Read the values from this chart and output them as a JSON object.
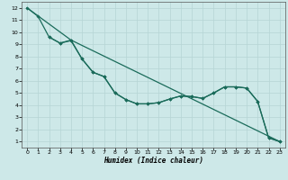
{
  "xlabel": "Humidex (Indice chaleur)",
  "background_color": "#cde8e8",
  "grid_color": "#b5d5d5",
  "line_color": "#1a6b5a",
  "xlim": [
    -0.5,
    23.5
  ],
  "ylim": [
    0.5,
    12.5
  ],
  "xticks": [
    0,
    1,
    2,
    3,
    4,
    5,
    6,
    7,
    8,
    9,
    10,
    11,
    12,
    13,
    14,
    15,
    16,
    17,
    18,
    19,
    20,
    21,
    22,
    23
  ],
  "yticks": [
    1,
    2,
    3,
    4,
    5,
    6,
    7,
    8,
    9,
    10,
    11,
    12
  ],
  "line1_x": [
    0,
    1,
    2,
    3,
    4,
    5,
    6,
    7,
    8,
    9,
    10,
    11,
    12,
    13,
    14,
    15,
    16,
    17,
    18,
    19,
    20,
    21,
    22,
    23
  ],
  "line1_y": [
    12,
    11.3,
    9.6,
    9.1,
    9.3,
    7.8,
    6.7,
    6.35,
    5.0,
    4.45,
    4.1,
    4.1,
    4.2,
    4.5,
    4.75,
    4.7,
    4.55,
    5.0,
    5.5,
    5.5,
    5.4,
    4.3,
    1.3,
    1.0
  ],
  "line2_x": [
    0,
    4,
    23
  ],
  "line2_y": [
    12,
    9.35,
    1.0
  ],
  "line3_x": [
    2,
    3,
    4,
    5,
    6,
    7,
    8,
    9,
    10,
    11,
    12,
    13,
    14,
    15,
    16,
    17,
    18,
    19,
    20,
    21,
    22,
    23
  ],
  "line3_y": [
    9.6,
    9.1,
    9.35,
    7.8,
    6.7,
    6.35,
    5.0,
    4.45,
    4.1,
    4.1,
    4.2,
    4.5,
    4.75,
    4.7,
    4.55,
    5.0,
    5.5,
    5.5,
    5.4,
    4.3,
    1.3,
    1.0
  ]
}
